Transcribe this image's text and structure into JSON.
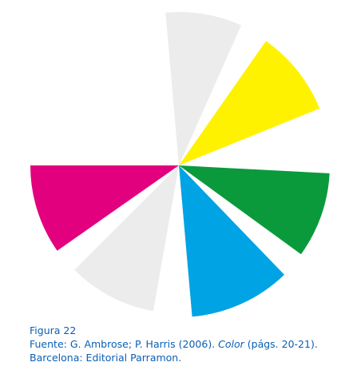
{
  "figure": {
    "wedges": [
      {
        "name": "wedge-top-gray",
        "color": "#ececec"
      },
      {
        "name": "wedge-yellow",
        "color": "#fff200"
      },
      {
        "name": "wedge-green",
        "color": "#0a9a3c"
      },
      {
        "name": "wedge-cyan",
        "color": "#00a3e3"
      },
      {
        "name": "wedge-lower-gray",
        "color": "#ececec"
      },
      {
        "name": "wedge-magenta",
        "color": "#e3007e"
      }
    ]
  },
  "caption": {
    "label": "Figura 22",
    "source_prefix": "Fuente: G. Ambrose; P. Harris (2006). ",
    "source_title": "Color",
    "source_suffix": " (págs. 20-21). Barcelona: Editorial Parramon."
  }
}
